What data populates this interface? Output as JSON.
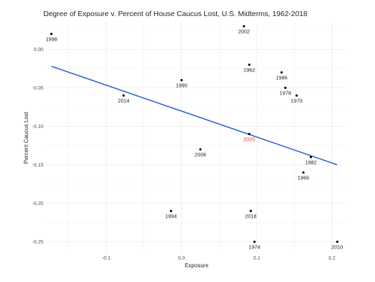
{
  "chart_data": {
    "type": "scatter",
    "title": "Degree of Exposure v. Percent of House Caucus Lost, U.S. Midterms, 1962-2018",
    "xlabel": "Exposure",
    "ylabel": "Percent Caucus Lost",
    "xlim": [
      -0.18,
      0.22
    ],
    "ylim": [
      -0.265,
      0.035
    ],
    "x_ticks": [
      -0.1,
      0.0,
      0.1,
      0.2
    ],
    "x_tick_labels": [
      "-0.1",
      "0.0",
      "0.1",
      "0.2"
    ],
    "y_ticks": [
      0.0,
      -0.05,
      -0.1,
      -0.15,
      -0.2,
      -0.25
    ],
    "y_tick_labels": [
      "0.00",
      "-0.05",
      "-0.10",
      "-0.15",
      "-0.20",
      "-0.25"
    ],
    "grid": true,
    "points": [
      {
        "label": "1998",
        "x": -0.173,
        "y": 0.02
      },
      {
        "label": "2002",
        "x": 0.083,
        "y": 0.03
      },
      {
        "label": "1962",
        "x": 0.09,
        "y": -0.02
      },
      {
        "label": "1986",
        "x": 0.133,
        "y": -0.03
      },
      {
        "label": "1990",
        "x": 0.0,
        "y": -0.04
      },
      {
        "label": "1978",
        "x": 0.138,
        "y": -0.05
      },
      {
        "label": "2014",
        "x": -0.077,
        "y": -0.06
      },
      {
        "label": "1970",
        "x": 0.153,
        "y": -0.06
      },
      {
        "label": "2020",
        "x": 0.09,
        "y": -0.11
      },
      {
        "label": "2006",
        "x": 0.025,
        "y": -0.13
      },
      {
        "label": "1982",
        "x": 0.172,
        "y": -0.14
      },
      {
        "label": "1966",
        "x": 0.162,
        "y": -0.16
      },
      {
        "label": "1994",
        "x": -0.014,
        "y": -0.21
      },
      {
        "label": "2018",
        "x": 0.092,
        "y": -0.21
      },
      {
        "label": "1974",
        "x": 0.097,
        "y": -0.25
      },
      {
        "label": "2010",
        "x": 0.207,
        "y": -0.25
      }
    ],
    "trend_line": {
      "x": [
        -0.173,
        0.207
      ],
      "y": [
        -0.022,
        -0.15
      ]
    },
    "colors": {
      "point": "#000000",
      "label": "#222222",
      "highlight": "#e0312b",
      "trend": "#3366cc",
      "grid": "#ebebeb"
    },
    "highlight_label": "2020"
  }
}
